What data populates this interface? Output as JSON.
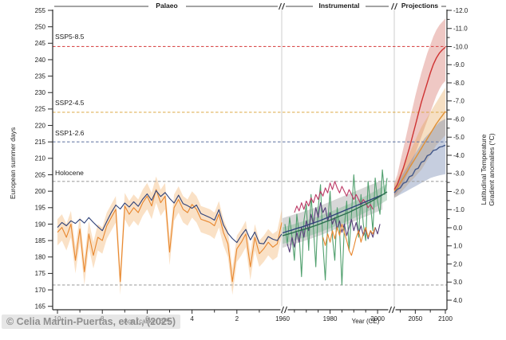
{
  "header": {
    "sections": [
      {
        "label": "Palaeo"
      },
      {
        "label": "Instrumental"
      },
      {
        "label": "Projections"
      }
    ]
  },
  "watermark": "© Celia Martin-Puertas, et al., (2025)",
  "colors": {
    "axis": "#2a2a2a",
    "separator": "#cccccc",
    "navy": "#2e4178",
    "orange": "#e8872e",
    "orange_band": "rgba(240,169,92,0.35)",
    "crimson": "#bc3a66",
    "purple": "#58407a",
    "green": "#51a06e",
    "green_dark": "#2a6e4e",
    "green_band": "rgba(122,180,142,0.38)",
    "gray_band": "rgba(150,150,150,0.38)",
    "red": "#cf3232",
    "red_band": "rgba(205,85,72,0.32)",
    "proj_orange": "#e09035",
    "proj_orange_band": "rgba(230,163,82,0.35)",
    "proj_navy": "#43598c",
    "proj_navy_band": "rgba(112,132,176,0.40)",
    "threshold_red": "#d94f4f",
    "threshold_orange": "#dca844",
    "threshold_navy": "#6c7ea8",
    "threshold_gray": "#a3a3a3"
  },
  "chart_data": {
    "type": "line",
    "x_axis": {
      "palaeo": {
        "label": "Age (cal kyr BP)",
        "domain": [
          10,
          0
        ],
        "major_ticks": [
          10,
          8,
          6,
          4,
          2
        ],
        "minor_ticks": [
          9,
          7,
          5,
          3,
          1
        ]
      },
      "instrumental": {
        "label": "Year (CE)",
        "domain": [
          1960,
          2005
        ],
        "major_ticks": [
          1960,
          1980,
          2000
        ],
        "minor_ticks": [
          1965,
          1970,
          1975,
          1985,
          1990,
          1995
        ]
      },
      "projections": {
        "domain": [
          2015,
          2100
        ],
        "major_ticks": [
          2050,
          2100
        ],
        "minor_ticks": [
          2025,
          2075
        ]
      }
    },
    "y_left": {
      "label": "European summer days",
      "range": [
        165,
        255
      ],
      "tick_step": 5
    },
    "y_right": {
      "label_line1": "Latitudinal Temperature",
      "label_line2": "Gradient anomalies (°C)",
      "range": [
        -12,
        4
      ],
      "tick_step": 1,
      "minor_step": 0.5,
      "inverted": true
    },
    "thresholds": [
      {
        "label": "SSP5-8.5",
        "value": 244,
        "color": "threshold_red"
      },
      {
        "label": "SSP2-4.5",
        "value": 224,
        "color": "threshold_orange"
      },
      {
        "label": "SSP1-2.6",
        "value": 215,
        "color": "threshold_navy"
      },
      {
        "label": "Holocene",
        "value": 203,
        "color": "threshold_gray"
      },
      {
        "label": "",
        "value": 171.5,
        "color": "threshold_gray"
      }
    ],
    "series": [
      {
        "name": "palaeo-reconstruction-orange",
        "section": "palaeo",
        "color": "orange",
        "x_start": 10,
        "x_step": -0.2,
        "band_halfwidth": 4,
        "band_color": "orange_band",
        "values": [
          187.5,
          189,
          186,
          190,
          179,
          188.5,
          175.5,
          187,
          180.5,
          186,
          185,
          189.5,
          192,
          194.5,
          172.5,
          195.5,
          193,
          195,
          193.5,
          196.5,
          198.5,
          195.5,
          200.5,
          196.5,
          198.5,
          181.5,
          195,
          197.5,
          194.5,
          193.5,
          196,
          194.5,
          191.5,
          191,
          190.5,
          189.5,
          193,
          187.5,
          184,
          172.5,
          182.5,
          184.5,
          187,
          177,
          186,
          181,
          182.5,
          184.5,
          183,
          184,
          190.5
        ]
      },
      {
        "name": "palaeo-reconstruction-navy",
        "section": "palaeo",
        "color": "navy",
        "x_start": 10,
        "x_step": -0.2,
        "values": [
          189,
          190.5,
          189.5,
          191,
          190.2,
          191.5,
          190.3,
          192,
          190.5,
          189.2,
          188,
          190.8,
          193.5,
          195.8,
          194.6,
          196.4,
          195.2,
          196.8,
          195.4,
          197.6,
          199.2,
          197.2,
          200.2,
          198.4,
          199.6,
          197.8,
          196.4,
          198.8,
          196.2,
          195.6,
          194.8,
          195.8,
          193.2,
          192.6,
          192,
          191.2,
          194.4,
          189.8,
          187.2,
          185.6,
          184.4,
          186.6,
          188.4,
          185.2,
          187.6,
          184.2,
          184,
          186.2,
          185.4,
          185,
          187
        ]
      },
      {
        "name": "instrumental-annual-green",
        "section": "instrumental",
        "color": "green",
        "x_start": 1961,
        "x_step": 1,
        "values": [
          190,
          184,
          192,
          186,
          179,
          193,
          187,
          174,
          191,
          196,
          182,
          199,
          189,
          177,
          195,
          202,
          184,
          173,
          190,
          200,
          186,
          179,
          195,
          188,
          171.5,
          189,
          197,
          182,
          193,
          205,
          195,
          186,
          199,
          190,
          185,
          203,
          196,
          188,
          204,
          197,
          193,
          206.5,
          199,
          204
        ]
      },
      {
        "name": "instrumental-crimson",
        "section": "instrumental",
        "color": "crimson",
        "x_start": 1965,
        "x_step": 1,
        "values": [
          193.5,
          195.5,
          194,
          196.5,
          194.5,
          197,
          195.5,
          198,
          196.5,
          199,
          197.5,
          200,
          198.5,
          201,
          199.5,
          202.5,
          200.5,
          203,
          201,
          199.5,
          201.5,
          200,
          198.5,
          200.5,
          199,
          197.5,
          199,
          197.5,
          196,
          197.5,
          196.5,
          195,
          196,
          194.5
        ]
      },
      {
        "name": "instrumental-purple",
        "section": "instrumental",
        "color": "purple",
        "x_start": 1962,
        "x_step": 1,
        "values": [
          184,
          181.5,
          186,
          183,
          187.5,
          184.5,
          189,
          186,
          191,
          188,
          193,
          190,
          195,
          192,
          196.5,
          193.5,
          195,
          191,
          193.5,
          190,
          192,
          188.5,
          191,
          187.5,
          190,
          186.5,
          189,
          191.5,
          188,
          190.5,
          187,
          189.5,
          186.5,
          188.5,
          185.5,
          188,
          186,
          189,
          187,
          190
        ]
      },
      {
        "name": "instrumental-orange",
        "section": "instrumental",
        "color": "orange",
        "x_start": 1977,
        "x_step": 1,
        "values": [
          186,
          183.5,
          187,
          184.5,
          188,
          185.5,
          189,
          186.5,
          190,
          187.5,
          185,
          182,
          180.5,
          183,
          186,
          188,
          184.5,
          187,
          189,
          186,
          188,
          187,
          189
        ]
      },
      {
        "name": "instrumental-trend-navy",
        "section": "instrumental",
        "color": "navy",
        "x_start": 1960,
        "x_step": 2,
        "band_halfwidth": 4.5,
        "band_color": "gray_band",
        "values": [
          187.3,
          187.8,
          188.2,
          188.7,
          189.1,
          189.6,
          190.1,
          190.6,
          191.1,
          191.7,
          192.3,
          192.9,
          193.5,
          194.1,
          194.7,
          195.3,
          195.9,
          196.5,
          197.1,
          197.7,
          198.3,
          198.9
        ]
      },
      {
        "name": "instrumental-trend-green",
        "section": "instrumental",
        "color": "green_dark",
        "x_start": 1960,
        "x_step": 2,
        "band_halfwidth": 2.5,
        "band_color": "green_band",
        "values": [
          186.5,
          186.9,
          187.3,
          187.8,
          188.2,
          188.6,
          189.1,
          189.6,
          190.1,
          190.7,
          191.2,
          191.8,
          192.4,
          193,
          193.6,
          194.3,
          195,
          195.7,
          196.4,
          197.2,
          198,
          198.9,
          199.8
        ]
      },
      {
        "name": "projection-ssp5-8-5",
        "section": "projections",
        "color": "red",
        "x_start": 2015,
        "x_step": 5,
        "band_color": "red_band",
        "values": [
          200.5,
          202,
          204.5,
          207,
          210,
          213,
          216.5,
          220,
          223.5,
          227,
          230,
          233,
          236,
          238.5,
          240.5,
          242,
          243,
          243.8
        ],
        "band_upper": [
          202.5,
          205,
          209,
          213,
          217,
          221,
          225,
          229,
          232.5,
          236,
          239,
          242,
          244.5,
          247,
          249,
          250.5,
          251.5,
          252.5
        ],
        "band_lower": [
          198.5,
          199.5,
          201,
          202.5,
          204.5,
          206.5,
          209,
          211.5,
          214,
          216.5,
          219,
          221.5,
          224,
          226.5,
          229,
          231,
          232.5,
          233.5
        ]
      },
      {
        "name": "projection-ssp2-4-5",
        "section": "projections",
        "color": "proj_orange",
        "x_start": 2015,
        "x_step": 5,
        "band_color": "proj_orange_band",
        "values": [
          200,
          201,
          202.5,
          204,
          205.5,
          207,
          208.5,
          210,
          211.5,
          213,
          214.5,
          216,
          217.5,
          219,
          220.5,
          221.8,
          223,
          224.3
        ],
        "band_upper": [
          202,
          203.5,
          205.5,
          207.5,
          209.5,
          211.5,
          213.5,
          215.5,
          217.5,
          219.5,
          221,
          222.5,
          224,
          225.5,
          227,
          228.5,
          230,
          231.5
        ],
        "band_lower": [
          198,
          198.5,
          199.5,
          200.5,
          201.5,
          202.5,
          203.5,
          204.5,
          205.5,
          206.5,
          208,
          209.5,
          211,
          212.5,
          214,
          215,
          216,
          217
        ]
      },
      {
        "name": "projection-ssp1-2-6",
        "section": "projections",
        "color": "proj_navy",
        "x_start": 2015,
        "x_step": 5,
        "band_color": "proj_navy_band",
        "values": [
          199.5,
          200.6,
          201,
          202.4,
          202.8,
          204.4,
          204.8,
          206.6,
          207,
          208.8,
          209.2,
          210.8,
          211.2,
          212.4,
          212.6,
          213.4,
          213.6,
          214
        ],
        "band_upper": [
          201,
          202.5,
          204,
          205.5,
          207,
          208.5,
          210,
          211.5,
          213,
          214.5,
          216,
          217,
          218,
          219,
          220,
          221,
          221.5,
          222
        ],
        "band_lower": [
          198,
          198.5,
          199,
          199.5,
          200,
          200.5,
          201,
          201.5,
          202,
          202.5,
          203,
          203.5,
          204,
          204.3,
          204.6,
          204.8,
          205,
          205.2
        ]
      }
    ]
  }
}
